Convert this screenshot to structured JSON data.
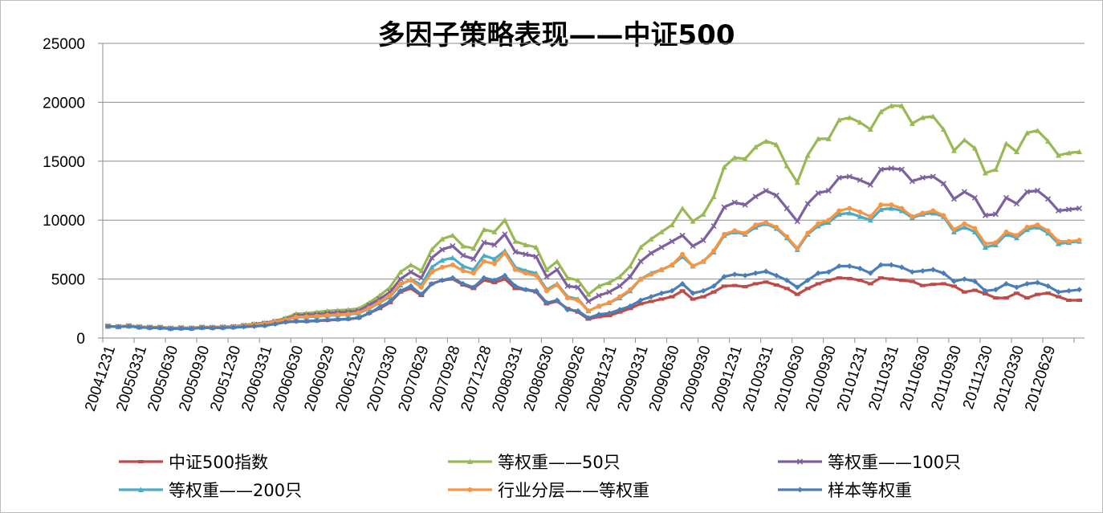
{
  "chart_data": {
    "type": "line",
    "title": "多因子策略表现——中证500",
    "xlabel": "",
    "ylabel": "",
    "ylim": [
      0,
      25000
    ],
    "yticks": [
      0,
      5000,
      10000,
      15000,
      20000,
      25000
    ],
    "grid": "horizontal",
    "legend": "bottom",
    "x": [
      "20041231",
      "20050131",
      "20050228",
      "20050331",
      "20050429",
      "20050531",
      "20050630",
      "20050729",
      "20050831",
      "20050930",
      "20051031",
      "20051130",
      "20051230",
      "20060126",
      "20060228",
      "20060331",
      "20060428",
      "20060531",
      "20060630",
      "20060731",
      "20060831",
      "20060929",
      "20061031",
      "20061130",
      "20061229",
      "20070131",
      "20070228",
      "20070330",
      "20070430",
      "20070531",
      "20070629",
      "20070731",
      "20070831",
      "20070928",
      "20071031",
      "20071130",
      "20071228",
      "20080131",
      "20080229",
      "20080331",
      "20080430",
      "20080530",
      "20080630",
      "20080731",
      "20080829",
      "20080926",
      "20081031",
      "20081128",
      "20081231",
      "20090123",
      "20090227",
      "20090331",
      "20090430",
      "20090527",
      "20090630",
      "20090731",
      "20090831",
      "20090930",
      "20091030",
      "20091130",
      "20091231",
      "20100129",
      "20100226",
      "20100331",
      "20100430",
      "20100531",
      "20100630",
      "20100730",
      "20100831",
      "20100930",
      "20101029",
      "20101130",
      "20101231",
      "20110131",
      "20110228",
      "20110331",
      "20110429",
      "20110531",
      "20110630",
      "20110729",
      "20110831",
      "20110930",
      "20111031",
      "20111130",
      "20111230",
      "20120131",
      "20120229",
      "20120330",
      "20120427",
      "20120531",
      "20120629",
      "20120731",
      "20120831",
      "20120928"
    ],
    "xtick_labels": [
      "20041231",
      "20050331",
      "20050630",
      "20050930",
      "20051230",
      "20060331",
      "20060630",
      "20060929",
      "20061229",
      "20070330",
      "20070629",
      "20070928",
      "20071228",
      "20080331",
      "20080630",
      "20080926",
      "20081231",
      "20090331",
      "20090630",
      "20090930",
      "20091231",
      "20100331",
      "20100630",
      "20100930",
      "20101231",
      "20110331",
      "20110630",
      "20110930",
      "20111230",
      "20120330",
      "20120629"
    ],
    "series": [
      {
        "name": "中证500指数",
        "color": "#be4b48",
        "marker": "dash",
        "values": [
          1000,
          950,
          1000,
          900,
          870,
          860,
          780,
          820,
          790,
          870,
          850,
          880,
          900,
          950,
          1000,
          1050,
          1200,
          1350,
          1400,
          1400,
          1450,
          1500,
          1550,
          1600,
          1700,
          2100,
          2500,
          3000,
          3900,
          4200,
          3600,
          4600,
          4900,
          5000,
          4500,
          4200,
          4900,
          4700,
          5000,
          4200,
          4100,
          3900,
          2900,
          3100,
          2500,
          2200,
          1600,
          1800,
          1900,
          2200,
          2500,
          2900,
          3100,
          3300,
          3500,
          4000,
          3300,
          3500,
          3900,
          4400,
          4450,
          4350,
          4600,
          4750,
          4500,
          4200,
          3700,
          4200,
          4600,
          4900,
          5100,
          5050,
          4900,
          4600,
          5100,
          5000,
          4900,
          4800,
          4450,
          4550,
          4600,
          4400,
          3900,
          4050,
          3750,
          3400,
          3400,
          3800,
          3400,
          3700,
          3800,
          3500,
          3200,
          3200
        ]
      },
      {
        "name": "等权重——50只",
        "color": "#98b954",
        "marker": "triangle",
        "values": [
          1000,
          970,
          1050,
          960,
          930,
          930,
          850,
          880,
          860,
          940,
          930,
          960,
          1000,
          1100,
          1200,
          1300,
          1450,
          1700,
          2050,
          2100,
          2200,
          2300,
          2350,
          2400,
          2500,
          3000,
          3600,
          4300,
          5600,
          6200,
          5700,
          7500,
          8400,
          8700,
          7800,
          7600,
          9200,
          9000,
          10000,
          8200,
          7900,
          7700,
          5800,
          6500,
          5100,
          4900,
          3700,
          4400,
          4700,
          5200,
          6100,
          7700,
          8400,
          9000,
          9600,
          11000,
          9900,
          10500,
          12000,
          14500,
          15300,
          15200,
          16200,
          16700,
          16400,
          14600,
          13200,
          15500,
          16900,
          16900,
          18500,
          18700,
          18300,
          17700,
          19200,
          19700,
          19700,
          18200,
          18700,
          18800,
          17700,
          15900,
          16800,
          16100,
          14000,
          14300,
          16500,
          15800,
          17400,
          17600,
          16700,
          15500,
          15700,
          15800
        ]
      },
      {
        "name": "等权重——100只",
        "color": "#7d60a0",
        "marker": "x",
        "values": [
          1000,
          960,
          1030,
          940,
          910,
          900,
          820,
          860,
          830,
          910,
          890,
          920,
          960,
          1050,
          1150,
          1250,
          1400,
          1600,
          1900,
          1950,
          2000,
          2100,
          2150,
          2200,
          2300,
          2800,
          3300,
          3900,
          5000,
          5600,
          5100,
          6800,
          7500,
          7800,
          7000,
          6700,
          8100,
          7900,
          8800,
          7300,
          7100,
          6900,
          5200,
          5800,
          4400,
          4300,
          3100,
          3600,
          3900,
          4400,
          5200,
          6500,
          7200,
          7700,
          8200,
          8700,
          7800,
          8300,
          9500,
          11100,
          11500,
          11300,
          12000,
          12500,
          12100,
          11000,
          9900,
          11400,
          12300,
          12500,
          13600,
          13700,
          13400,
          13000,
          14300,
          14400,
          14300,
          13300,
          13600,
          13700,
          13100,
          11800,
          12400,
          11900,
          10400,
          10500,
          11900,
          11400,
          12400,
          12500,
          11800,
          10800,
          10900,
          11000
        ]
      },
      {
        "name": "等权重——200只",
        "color": "#4aacc5",
        "marker": "triangle",
        "values": [
          1000,
          955,
          1010,
          925,
          895,
          885,
          805,
          845,
          815,
          895,
          875,
          905,
          945,
          1020,
          1100,
          1200,
          1350,
          1520,
          1750,
          1780,
          1830,
          1900,
          1950,
          2000,
          2100,
          2500,
          3000,
          3500,
          4500,
          5000,
          4500,
          6000,
          6600,
          6800,
          6100,
          5800,
          7000,
          6700,
          7400,
          6000,
          5700,
          5500,
          4100,
          4600,
          3500,
          3300,
          2300,
          2700,
          3000,
          3400,
          4000,
          5000,
          5500,
          5800,
          6200,
          6900,
          6100,
          6500,
          7300,
          8700,
          9000,
          8800,
          9400,
          9700,
          9300,
          8500,
          7500,
          8800,
          9500,
          9800,
          10500,
          10600,
          10300,
          10000,
          10900,
          11000,
          10800,
          10200,
          10500,
          10600,
          10300,
          9000,
          9400,
          9000,
          7700,
          7900,
          8800,
          8500,
          9200,
          9400,
          8900,
          8000,
          8100,
          8200
        ]
      },
      {
        "name": "行业分层——等权重",
        "color": "#f69544",
        "marker": "circle",
        "values": [
          1000,
          960,
          1020,
          935,
          905,
          895,
          815,
          855,
          825,
          905,
          885,
          915,
          955,
          1040,
          1120,
          1220,
          1380,
          1550,
          1780,
          1810,
          1860,
          1930,
          1980,
          2030,
          2150,
          2550,
          3050,
          3600,
          4600,
          4900,
          4300,
          5600,
          6000,
          6200,
          5700,
          5500,
          6500,
          6300,
          7200,
          5800,
          5500,
          5300,
          4000,
          4500,
          3400,
          3200,
          2300,
          2700,
          3000,
          3500,
          4100,
          5000,
          5400,
          5800,
          6200,
          7100,
          6100,
          6500,
          7400,
          8800,
          9100,
          8900,
          9600,
          9800,
          9400,
          8600,
          7600,
          8900,
          9700,
          10000,
          10800,
          11000,
          10700,
          10300,
          11300,
          11300,
          11000,
          10300,
          10600,
          10800,
          10400,
          9200,
          9700,
          9300,
          8000,
          8100,
          9000,
          8700,
          9400,
          9600,
          9100,
          8200,
          8200,
          8300
        ]
      },
      {
        "name": "样本等权重",
        "color": "#4a7ebb",
        "marker": "diamond",
        "values": [
          1000,
          950,
          1000,
          900,
          870,
          860,
          780,
          820,
          790,
          870,
          850,
          870,
          900,
          950,
          1000,
          1050,
          1180,
          1350,
          1420,
          1430,
          1480,
          1530,
          1580,
          1620,
          1720,
          2100,
          2600,
          3100,
          4000,
          4400,
          3700,
          4600,
          4900,
          5100,
          4600,
          4300,
          5100,
          4900,
          5300,
          4400,
          4100,
          4000,
          3000,
          3200,
          2400,
          2300,
          1700,
          2000,
          2100,
          2400,
          2700,
          3200,
          3500,
          3800,
          4000,
          4600,
          3800,
          4000,
          4400,
          5200,
          5400,
          5300,
          5500,
          5650,
          5300,
          4900,
          4300,
          4900,
          5500,
          5600,
          6100,
          6100,
          5900,
          5500,
          6200,
          6200,
          6000,
          5600,
          5700,
          5800,
          5500,
          4800,
          5000,
          4800,
          4000,
          4100,
          4600,
          4300,
          4600,
          4700,
          4400,
          3900,
          4000,
          4100
        ]
      }
    ]
  }
}
